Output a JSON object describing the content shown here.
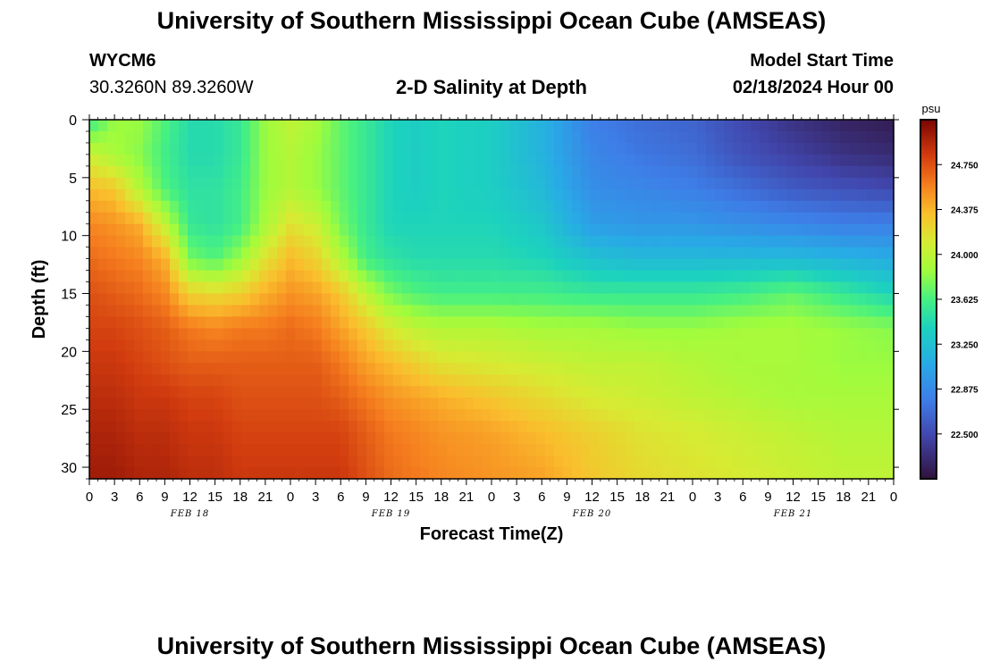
{
  "header": {
    "title": "University of Southern Mississippi Ocean Cube (AMSEAS)",
    "station_id": "WYCM6",
    "coordinates": "30.3260N  89.3260W",
    "plot_title": "2-D Salinity at Depth",
    "model_start_label": "Model Start Time",
    "model_start_value": "02/18/2024 Hour 00"
  },
  "footer": {
    "title": "University of Southern Mississippi Ocean Cube (AMSEAS)"
  },
  "chart_data": {
    "type": "heatmap",
    "title": "2-D Salinity at Depth",
    "xlabel": "Forecast Time(Z)",
    "ylabel": "Depth (ft)",
    "x_ticks": [
      "0",
      "3",
      "6",
      "9",
      "12",
      "15",
      "18",
      "21",
      "0",
      "3",
      "6",
      "9",
      "12",
      "15",
      "18",
      "21",
      "0",
      "3",
      "6",
      "9",
      "12",
      "15",
      "18",
      "21",
      "0",
      "3",
      "6",
      "9",
      "12",
      "15",
      "18",
      "21",
      "0"
    ],
    "x_range_hours": [
      0,
      96
    ],
    "date_labels": [
      {
        "label": "FEB 18",
        "hour": 12
      },
      {
        "label": "FEB 19",
        "hour": 36
      },
      {
        "label": "FEB 20",
        "hour": 60
      },
      {
        "label": "FEB 21",
        "hour": 84
      }
    ],
    "y_ticks": [
      0,
      5,
      10,
      15,
      20,
      25,
      30
    ],
    "ylim": [
      31,
      0
    ],
    "colorbar": {
      "unit": "psu",
      "range": [
        22.125,
        25.125
      ],
      "tick_values": [
        22.5,
        22.875,
        23.25,
        23.625,
        24.0,
        24.375,
        24.75
      ],
      "tick_labels": [
        "22.500",
        "22.875",
        "23.250",
        "23.625",
        "24.000",
        "24.375",
        "24.750"
      ]
    },
    "salinity_field": {
      "hours": [
        0,
        3,
        6,
        9,
        12,
        15,
        18,
        21,
        24,
        27,
        30,
        33,
        36,
        39,
        42,
        48,
        54,
        60,
        66,
        72,
        78,
        84,
        90,
        96
      ],
      "depths_ft": [
        0,
        3,
        6,
        9,
        12,
        15,
        18,
        21,
        24,
        27,
        31
      ],
      "values_psu": [
        [
          23.55,
          23.85,
          23.85,
          23.65,
          23.45,
          23.45,
          23.55,
          23.85,
          24.0,
          23.9,
          23.7,
          23.55,
          23.4,
          23.35,
          23.4,
          23.35,
          23.15,
          22.8,
          22.7,
          22.65,
          22.5,
          22.35,
          22.25,
          22.2
        ],
        [
          24.05,
          23.9,
          23.8,
          23.6,
          23.45,
          23.45,
          23.55,
          23.85,
          23.95,
          23.85,
          23.7,
          23.55,
          23.4,
          23.35,
          23.4,
          23.35,
          23.15,
          22.85,
          22.75,
          22.7,
          22.55,
          22.45,
          22.35,
          22.3
        ],
        [
          24.35,
          24.3,
          23.95,
          23.65,
          23.5,
          23.5,
          23.6,
          23.85,
          23.95,
          23.85,
          23.7,
          23.55,
          23.4,
          23.35,
          23.4,
          23.35,
          23.2,
          22.9,
          22.85,
          22.8,
          22.7,
          22.6,
          22.55,
          22.5
        ],
        [
          24.55,
          24.5,
          24.4,
          24.0,
          23.55,
          23.5,
          23.6,
          23.9,
          24.15,
          24.05,
          23.75,
          23.55,
          23.4,
          23.4,
          23.4,
          23.4,
          23.3,
          23.0,
          22.95,
          22.95,
          22.9,
          22.85,
          22.8,
          22.8
        ],
        [
          24.65,
          24.6,
          24.55,
          24.4,
          23.75,
          23.65,
          23.85,
          24.15,
          24.35,
          24.25,
          23.95,
          23.6,
          23.5,
          23.45,
          23.45,
          23.45,
          23.4,
          23.25,
          23.2,
          23.2,
          23.2,
          23.2,
          23.15,
          23.1
        ],
        [
          24.75,
          24.7,
          24.65,
          24.55,
          24.25,
          24.2,
          24.25,
          24.4,
          24.5,
          24.45,
          24.3,
          24.0,
          23.75,
          23.65,
          23.6,
          23.6,
          23.6,
          23.55,
          23.55,
          23.55,
          23.6,
          23.7,
          23.55,
          23.4
        ],
        [
          24.8,
          24.8,
          24.75,
          24.7,
          24.6,
          24.55,
          24.6,
          24.6,
          24.65,
          24.6,
          24.45,
          24.3,
          24.1,
          24.0,
          23.95,
          23.95,
          23.9,
          23.9,
          23.85,
          23.85,
          23.9,
          23.9,
          23.85,
          23.8
        ],
        [
          24.85,
          24.85,
          24.8,
          24.75,
          24.7,
          24.7,
          24.7,
          24.7,
          24.7,
          24.7,
          24.6,
          24.45,
          24.35,
          24.25,
          24.15,
          24.1,
          24.05,
          24.0,
          24.0,
          23.95,
          23.9,
          23.9,
          23.85,
          23.85
        ],
        [
          24.9,
          24.9,
          24.85,
          24.85,
          24.8,
          24.8,
          24.75,
          24.75,
          24.75,
          24.75,
          24.7,
          24.6,
          24.5,
          24.45,
          24.4,
          24.3,
          24.2,
          24.1,
          24.05,
          24.0,
          23.95,
          23.9,
          23.9,
          23.9
        ],
        [
          24.95,
          24.95,
          24.9,
          24.9,
          24.85,
          24.85,
          24.8,
          24.8,
          24.8,
          24.8,
          24.8,
          24.7,
          24.6,
          24.55,
          24.5,
          24.45,
          24.35,
          24.25,
          24.15,
          24.1,
          24.05,
          24.0,
          23.95,
          23.95
        ],
        [
          25.0,
          25.0,
          24.95,
          24.95,
          24.9,
          24.9,
          24.85,
          24.85,
          24.85,
          24.85,
          24.85,
          24.75,
          24.65,
          24.6,
          24.55,
          24.5,
          24.45,
          24.3,
          24.2,
          24.15,
          24.1,
          24.05,
          24.0,
          24.0
        ]
      ]
    }
  }
}
